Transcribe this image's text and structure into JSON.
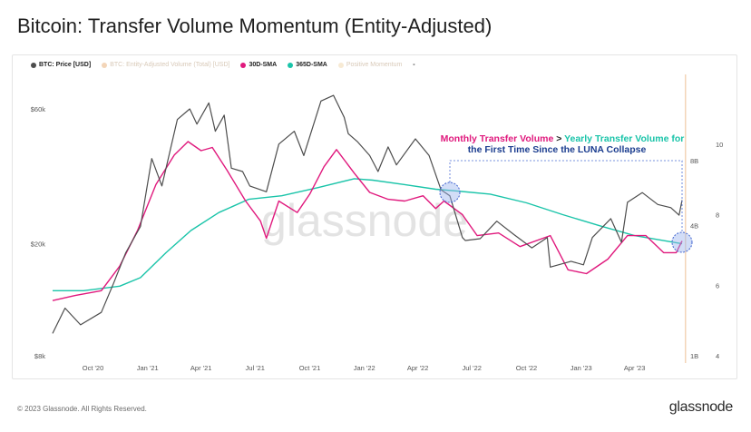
{
  "page": {
    "title": "Bitcoin: Transfer Volume Momentum (Entity-Adjusted)",
    "copyright": "© 2023 Glassnode. All Rights Reserved.",
    "logo": "glassnode",
    "watermark": "glassnode"
  },
  "legend": [
    {
      "label": "BTC: Price [USD]",
      "color": "#4d4d4d",
      "faded": false
    },
    {
      "label": "BTC: Entity-Adjusted Volume (Total) [USD]",
      "color": "#f3d5b8",
      "faded": true
    },
    {
      "label": "30D-SMA",
      "color": "#e0197d",
      "faded": false
    },
    {
      "label": "365D-SMA",
      "color": "#1ac4a9",
      "faded": false
    },
    {
      "label": "Positive Momentum",
      "color": "#f7ead4",
      "faded": true
    },
    {
      "label": "-",
      "color": "#9a9a9a",
      "faded": false
    }
  ],
  "annotation": {
    "part1": "Monthly Transfer Volume",
    "part2": " > ",
    "part3": "Yearly Transfer Volume for",
    "line2": "the First Time Since the LUNA Collapse",
    "color1": "#e0197d",
    "color3": "#1ac4a9",
    "color_line2": "#1b3d8f"
  },
  "chart_data": {
    "type": "line",
    "title": "Bitcoin: Transfer Volume Momentum (Entity-Adjusted)",
    "x_ticks": [
      "Oct '20",
      "Jan '21",
      "Apr '21",
      "Jul '21",
      "Oct '21",
      "Jan '22",
      "Apr '22",
      "Jul '22",
      "Oct '22",
      "Jan '23",
      "Apr '23"
    ],
    "x_range": [
      "2020-07-25",
      "2023-06-20"
    ],
    "y_left": {
      "scale": "log",
      "ticks": [
        "$60k",
        "$20k",
        "$8k"
      ],
      "tick_values": [
        60000,
        20000,
        8000
      ],
      "range": [
        8000,
        100000
      ]
    },
    "y_right_inner": {
      "scale": "log",
      "ticks": [
        "8B",
        "4B",
        "1B"
      ],
      "tick_values": [
        8,
        4,
        1
      ],
      "unit": "B USD"
    },
    "y_right_outer": {
      "ticks": [
        "10",
        "8",
        "6",
        "4"
      ],
      "tick_values": [
        10,
        8,
        6,
        4
      ]
    },
    "series": [
      {
        "name": "BTC: Price [USD]",
        "color": "#4d4d4d",
        "axis": "left",
        "points": [
          [
            "2020-07-25",
            9600
          ],
          [
            "2020-08-15",
            11800
          ],
          [
            "2020-09-10",
            10300
          ],
          [
            "2020-10-15",
            11400
          ],
          [
            "2020-11-05",
            14500
          ],
          [
            "2020-11-25",
            18500
          ],
          [
            "2020-12-20",
            23000
          ],
          [
            "2021-01-08",
            40000
          ],
          [
            "2021-01-25",
            32000
          ],
          [
            "2021-02-20",
            55000
          ],
          [
            "2021-03-13",
            60000
          ],
          [
            "2021-03-25",
            53000
          ],
          [
            "2021-04-14",
            63000
          ],
          [
            "2021-04-25",
            50000
          ],
          [
            "2021-05-10",
            57000
          ],
          [
            "2021-05-22",
            37000
          ],
          [
            "2021-06-10",
            36000
          ],
          [
            "2021-06-22",
            32000
          ],
          [
            "2021-07-20",
            30500
          ],
          [
            "2021-08-10",
            45000
          ],
          [
            "2021-09-05",
            50000
          ],
          [
            "2021-09-21",
            41000
          ],
          [
            "2021-10-20",
            64000
          ],
          [
            "2021-11-10",
            67000
          ],
          [
            "2021-11-28",
            56000
          ],
          [
            "2021-12-05",
            49000
          ],
          [
            "2021-12-20",
            46000
          ],
          [
            "2022-01-10",
            41000
          ],
          [
            "2022-01-24",
            36000
          ],
          [
            "2022-02-10",
            44000
          ],
          [
            "2022-02-24",
            38000
          ],
          [
            "2022-03-28",
            47000
          ],
          [
            "2022-04-20",
            41000
          ],
          [
            "2022-05-10",
            31000
          ],
          [
            "2022-05-25",
            29500
          ],
          [
            "2022-06-15",
            21000
          ],
          [
            "2022-06-20",
            20500
          ],
          [
            "2022-07-15",
            20800
          ],
          [
            "2022-08-12",
            24000
          ],
          [
            "2022-09-10",
            21500
          ],
          [
            "2022-10-10",
            19300
          ],
          [
            "2022-11-05",
            21000
          ],
          [
            "2022-11-10",
            16500
          ],
          [
            "2022-12-15",
            17300
          ],
          [
            "2023-01-05",
            16800
          ],
          [
            "2023-01-20",
            21000
          ],
          [
            "2023-02-20",
            24500
          ],
          [
            "2023-03-10",
            20200
          ],
          [
            "2023-03-20",
            28000
          ],
          [
            "2023-04-14",
            30300
          ],
          [
            "2023-05-10",
            27500
          ],
          [
            "2023-06-01",
            26800
          ],
          [
            "2023-06-15",
            25200
          ],
          [
            "2023-06-20",
            28500
          ]
        ]
      },
      {
        "name": "30D-SMA",
        "color": "#e0197d",
        "axis": "right_inner",
        "points": [
          [
            "2020-07-25",
            1.8
          ],
          [
            "2020-09-01",
            1.9
          ],
          [
            "2020-10-15",
            2.0
          ],
          [
            "2020-11-15",
            2.6
          ],
          [
            "2020-12-15",
            3.8
          ],
          [
            "2021-01-15",
            6.2
          ],
          [
            "2021-02-15",
            8.5
          ],
          [
            "2021-03-10",
            9.8
          ],
          [
            "2021-04-01",
            8.9
          ],
          [
            "2021-04-20",
            9.2
          ],
          [
            "2021-05-15",
            7.2
          ],
          [
            "2021-06-15",
            5.2
          ],
          [
            "2021-07-10",
            4.2
          ],
          [
            "2021-07-20",
            3.5
          ],
          [
            "2021-08-10",
            5.2
          ],
          [
            "2021-09-10",
            4.6
          ],
          [
            "2021-10-01",
            5.6
          ],
          [
            "2021-10-25",
            7.5
          ],
          [
            "2021-11-15",
            9.0
          ],
          [
            "2021-12-15",
            7.0
          ],
          [
            "2022-01-10",
            5.7
          ],
          [
            "2022-02-10",
            5.3
          ],
          [
            "2022-03-10",
            5.2
          ],
          [
            "2022-04-10",
            5.5
          ],
          [
            "2022-05-01",
            4.8
          ],
          [
            "2022-05-15",
            5.2
          ],
          [
            "2022-06-15",
            4.5
          ],
          [
            "2022-07-10",
            3.6
          ],
          [
            "2022-08-15",
            3.7
          ],
          [
            "2022-09-20",
            3.2
          ],
          [
            "2022-11-10",
            3.6
          ],
          [
            "2022-12-10",
            2.5
          ],
          [
            "2023-01-10",
            2.4
          ],
          [
            "2023-02-15",
            2.8
          ],
          [
            "2023-03-20",
            3.6
          ],
          [
            "2023-04-20",
            3.6
          ],
          [
            "2023-05-20",
            3.0
          ],
          [
            "2023-06-10",
            3.0
          ],
          [
            "2023-06-20",
            3.4
          ]
        ]
      },
      {
        "name": "365D-SMA",
        "color": "#1ac4a9",
        "axis": "right_inner",
        "points": [
          [
            "2020-07-25",
            2.0
          ],
          [
            "2020-09-15",
            2.0
          ],
          [
            "2020-11-15",
            2.1
          ],
          [
            "2020-12-20",
            2.3
          ],
          [
            "2021-02-01",
            3.0
          ],
          [
            "2021-03-15",
            3.8
          ],
          [
            "2021-05-01",
            4.6
          ],
          [
            "2021-06-20",
            5.3
          ],
          [
            "2021-08-15",
            5.5
          ],
          [
            "2021-10-15",
            6.0
          ],
          [
            "2021-12-15",
            6.6
          ],
          [
            "2022-01-15",
            6.5
          ],
          [
            "2022-03-10",
            6.2
          ],
          [
            "2022-05-01",
            5.9
          ],
          [
            "2022-06-01",
            5.8
          ],
          [
            "2022-08-01",
            5.6
          ],
          [
            "2022-10-01",
            5.1
          ],
          [
            "2022-12-01",
            4.5
          ],
          [
            "2023-02-01",
            4.0
          ],
          [
            "2023-04-01",
            3.6
          ],
          [
            "2023-06-20",
            3.3
          ]
        ]
      }
    ],
    "highlights": [
      {
        "date": "2022-05-25",
        "value": 5.7,
        "axis": "right_inner"
      },
      {
        "date": "2023-06-20",
        "value": 3.35,
        "axis": "right_inner"
      }
    ]
  }
}
